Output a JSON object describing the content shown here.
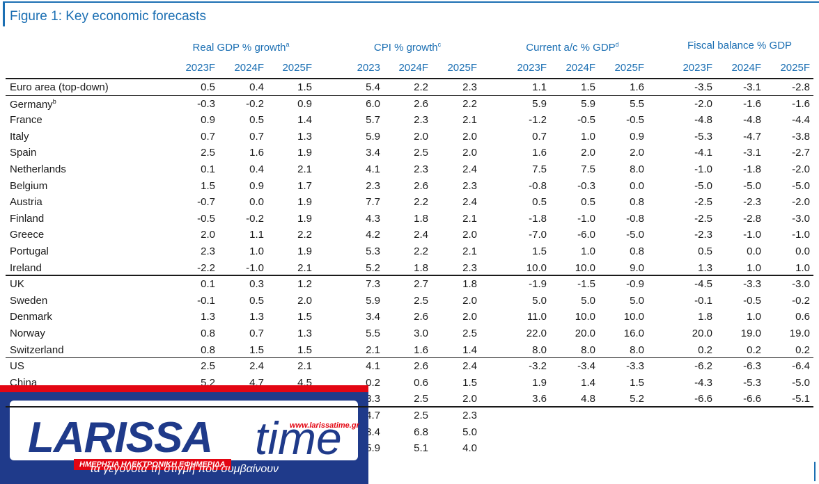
{
  "title": "Figure 1: Key economic forecasts",
  "groups": [
    {
      "label": "Real GDP % growth",
      "sup": "a"
    },
    {
      "label": "CPI % growth",
      "sup": "c"
    },
    {
      "label": "Current a/c % GDP",
      "sup": "d"
    },
    {
      "label": "Fiscal balance % GDP",
      "sup": ""
    }
  ],
  "years": [
    "2023F",
    "2024F",
    "2025F",
    "2023",
    "2024F",
    "2025F",
    "2023F",
    "2024F",
    "2025F",
    "2023F",
    "2024F",
    "2025F"
  ],
  "rows": [
    {
      "label": "Euro area (top-down)",
      "sup": "",
      "values": [
        "0.5",
        "0.4",
        "1.5",
        "5.4",
        "2.2",
        "2.3",
        "1.1",
        "1.5",
        "1.6",
        "-3.5",
        "-3.1",
        "-2.8"
      ]
    },
    {
      "label": "Germany",
      "sup": "b",
      "values": [
        "-0.3",
        "-0.2",
        "0.9",
        "6.0",
        "2.6",
        "2.2",
        "5.9",
        "5.9",
        "5.5",
        "-2.0",
        "-1.6",
        "-1.6"
      ]
    },
    {
      "label": "France",
      "sup": "",
      "values": [
        "0.9",
        "0.5",
        "1.4",
        "5.7",
        "2.3",
        "2.1",
        "-1.2",
        "-0.5",
        "-0.5",
        "-4.8",
        "-4.8",
        "-4.4"
      ]
    },
    {
      "label": "Italy",
      "sup": "",
      "values": [
        "0.7",
        "0.7",
        "1.3",
        "5.9",
        "2.0",
        "2.0",
        "0.7",
        "1.0",
        "0.9",
        "-5.3",
        "-4.7",
        "-3.8"
      ]
    },
    {
      "label": "Spain",
      "sup": "",
      "values": [
        "2.5",
        "1.6",
        "1.9",
        "3.4",
        "2.5",
        "2.0",
        "1.6",
        "2.0",
        "2.0",
        "-4.1",
        "-3.1",
        "-2.7"
      ]
    },
    {
      "label": "Netherlands",
      "sup": "",
      "values": [
        "0.1",
        "0.4",
        "2.1",
        "4.1",
        "2.3",
        "2.4",
        "7.5",
        "7.5",
        "8.0",
        "-1.0",
        "-1.8",
        "-2.0"
      ]
    },
    {
      "label": "Belgium",
      "sup": "",
      "values": [
        "1.5",
        "0.9",
        "1.7",
        "2.3",
        "2.6",
        "2.3",
        "-0.8",
        "-0.3",
        "0.0",
        "-5.0",
        "-5.0",
        "-5.0"
      ]
    },
    {
      "label": "Austria",
      "sup": "",
      "values": [
        "-0.7",
        "0.0",
        "1.9",
        "7.7",
        "2.2",
        "2.4",
        "0.5",
        "0.5",
        "0.8",
        "-2.5",
        "-2.3",
        "-2.0"
      ]
    },
    {
      "label": "Finland",
      "sup": "",
      "values": [
        "-0.5",
        "-0.2",
        "1.9",
        "4.3",
        "1.8",
        "2.1",
        "-1.8",
        "-1.0",
        "-0.8",
        "-2.5",
        "-2.8",
        "-3.0"
      ]
    },
    {
      "label": "Greece",
      "sup": "",
      "values": [
        "2.0",
        "1.1",
        "2.2",
        "4.2",
        "2.4",
        "2.0",
        "-7.0",
        "-6.0",
        "-5.0",
        "-2.3",
        "-1.0",
        "-1.0"
      ]
    },
    {
      "label": "Portugal",
      "sup": "",
      "values": [
        "2.3",
        "1.0",
        "1.9",
        "5.3",
        "2.2",
        "2.1",
        "1.5",
        "1.0",
        "0.8",
        "0.5",
        "0.0",
        "0.0"
      ]
    },
    {
      "label": "Ireland",
      "sup": "",
      "values": [
        "-2.2",
        "-1.0",
        "2.1",
        "5.2",
        "1.8",
        "2.3",
        "10.0",
        "10.0",
        "9.0",
        "1.3",
        "1.0",
        "1.0"
      ]
    },
    {
      "label": "UK",
      "sup": "",
      "values": [
        "0.1",
        "0.3",
        "1.2",
        "7.3",
        "2.7",
        "1.8",
        "-1.9",
        "-1.5",
        "-0.9",
        "-4.5",
        "-3.3",
        "-3.0"
      ]
    },
    {
      "label": "Sweden",
      "sup": "",
      "values": [
        "-0.1",
        "0.5",
        "2.0",
        "5.9",
        "2.5",
        "2.0",
        "5.0",
        "5.0",
        "5.0",
        "-0.1",
        "-0.5",
        "-0.2"
      ]
    },
    {
      "label": "Denmark",
      "sup": "",
      "values": [
        "1.3",
        "1.3",
        "1.5",
        "3.4",
        "2.6",
        "2.0",
        "11.0",
        "10.0",
        "10.0",
        "1.8",
        "1.0",
        "0.6"
      ]
    },
    {
      "label": "Norway",
      "sup": "",
      "values": [
        "0.8",
        "0.7",
        "1.3",
        "5.5",
        "3.0",
        "2.5",
        "22.0",
        "20.0",
        "16.0",
        "20.0",
        "19.0",
        "19.0"
      ]
    },
    {
      "label": "Switzerland",
      "sup": "",
      "values": [
        "0.8",
        "1.5",
        "1.5",
        "2.1",
        "1.6",
        "1.4",
        "8.0",
        "8.0",
        "8.0",
        "0.2",
        "0.2",
        "0.2"
      ]
    },
    {
      "label": "US",
      "sup": "",
      "values": [
        "2.5",
        "2.4",
        "2.1",
        "4.1",
        "2.6",
        "2.4",
        "-3.2",
        "-3.4",
        "-3.3",
        "-6.2",
        "-6.3",
        "-6.4"
      ]
    },
    {
      "label": "China",
      "sup": "",
      "values": [
        "5.2",
        "4.7",
        "4.5",
        "0.2",
        "0.6",
        "1.5",
        "1.9",
        "1.4",
        "1.5",
        "-4.3",
        "-5.3",
        "-5.0"
      ]
    },
    {
      "label": "",
      "sup": "",
      "values": [
        "",
        "",
        "",
        "3.3",
        "2.5",
        "2.0",
        "3.6",
        "4.8",
        "5.2",
        "-6.6",
        "-6.6",
        "-5.1"
      ]
    },
    {
      "label": "",
      "sup": "",
      "values": [
        "",
        "",
        "",
        "4.7",
        "2.5",
        "2.3",
        "",
        "",
        "",
        "",
        "",
        ""
      ]
    },
    {
      "label": "",
      "sup": "",
      "values": [
        "",
        "",
        "",
        "3.4",
        "6.8",
        "5.0",
        "",
        "",
        "",
        "",
        "",
        ""
      ]
    },
    {
      "label": "",
      "sup": "",
      "values": [
        "",
        "",
        "",
        "5.9",
        "5.1",
        "4.0",
        "",
        "",
        "",
        "",
        "",
        ""
      ]
    }
  ],
  "logo": {
    "name": "LARISSA",
    "time": "time",
    "url": "www.larissatime.gr",
    "subtitle": "ΗΜΕΡΗΣΙΑ ΗΛΕΚΤΡΟΝΙΚΗ ΕΦΗΜΕΡΙΔΑ",
    "tagline": "τα γεγονότα τη στιγμή που συμβαίνουν"
  }
}
